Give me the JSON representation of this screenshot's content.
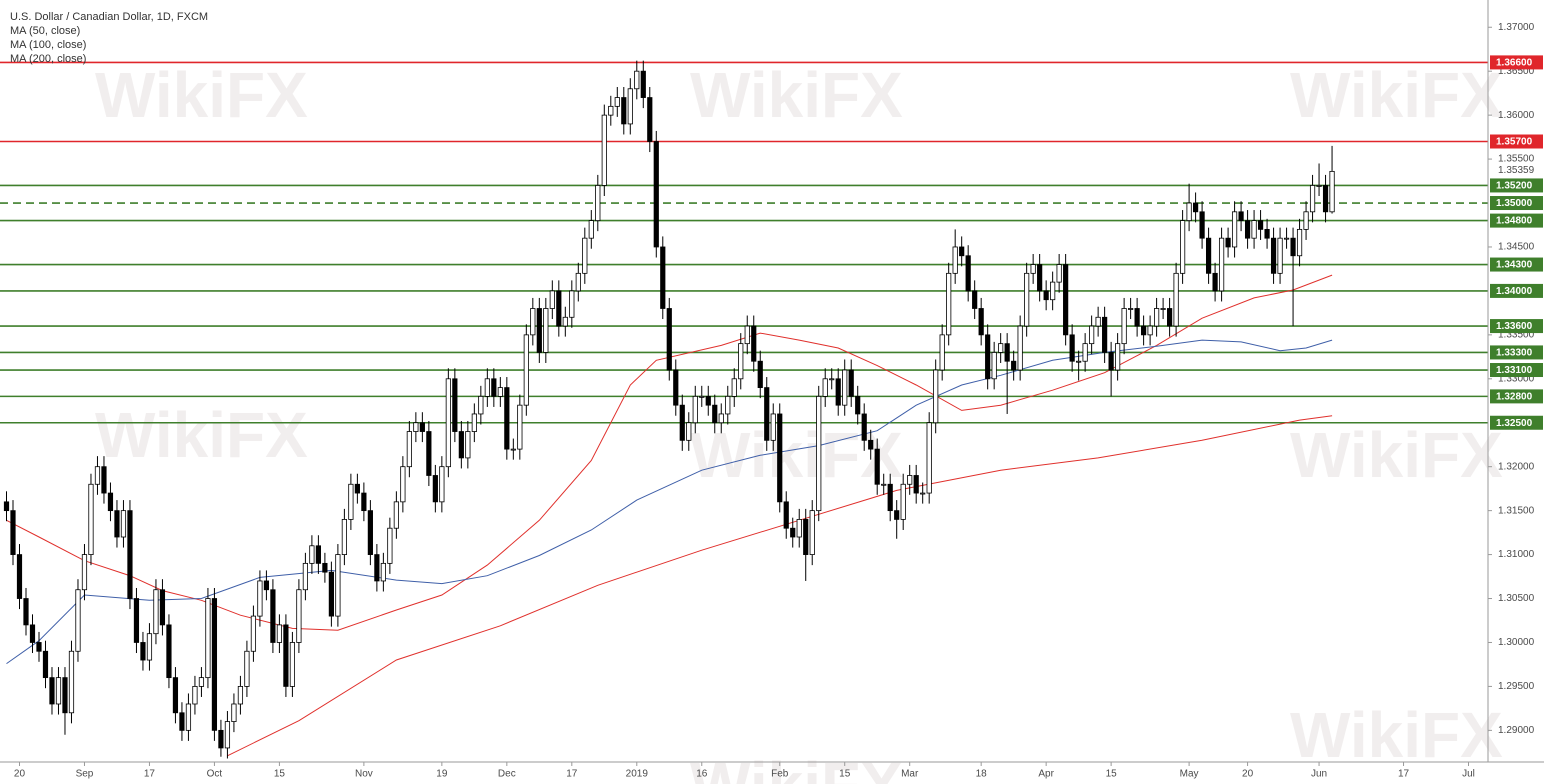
{
  "chart_data": {
    "type": "candlestick",
    "title": "U.S. Dollar / Canadian Dollar, 1D, FXCM",
    "watermark": "WikiFX",
    "open": [
      1.316,
      1.315,
      1.31,
      1.305,
      1.302,
      1.3,
      1.299,
      1.296,
      1.293,
      1.296,
      1.292,
      1.299,
      1.306,
      1.31,
      1.318,
      1.32,
      1.317,
      1.315,
      1.312,
      1.315,
      1.305,
      1.3,
      1.298,
      1.301,
      1.306,
      1.302,
      1.296,
      1.292,
      1.29,
      1.293,
      1.295,
      1.296,
      1.305,
      1.29,
      1.288,
      1.291,
      1.293,
      1.295,
      1.299,
      1.303,
      1.307,
      1.306,
      1.3,
      1.302,
      1.295,
      1.3,
      1.306,
      1.309,
      1.311,
      1.309,
      1.308,
      1.303,
      1.31,
      1.314,
      1.318,
      1.317,
      1.315,
      1.31,
      1.307,
      1.309,
      1.313,
      1.316,
      1.32,
      1.324,
      1.325,
      1.324,
      1.319,
      1.316,
      1.32,
      1.33,
      1.324,
      1.321,
      1.324,
      1.326,
      1.328,
      1.33,
      1.328,
      1.329,
      1.322,
      1.322,
      1.327,
      1.335,
      1.338,
      1.333,
      1.338,
      1.34,
      1.336,
      1.337,
      1.34,
      1.342,
      1.346,
      1.348,
      1.352,
      1.36,
      1.361,
      1.362,
      1.359,
      1.363,
      1.365,
      1.362,
      1.357,
      1.345,
      1.338,
      1.331,
      1.327,
      1.323,
      1.325,
      1.328,
      1.328,
      1.327,
      1.325,
      1.326,
      1.328,
      1.33,
      1.334,
      1.336,
      1.332,
      1.329,
      1.323,
      1.326,
      1.316,
      1.313,
      1.312,
      1.314,
      1.31,
      1.315,
      1.328,
      1.33,
      1.33,
      1.327,
      1.331,
      1.328,
      1.326,
      1.323,
      1.322,
      1.318,
      1.318,
      1.315,
      1.314,
      1.318,
      1.319,
      1.317,
      1.317,
      1.325,
      1.331,
      1.335,
      1.342,
      1.345,
      1.344,
      1.34,
      1.338,
      1.335,
      1.33,
      1.333,
      1.334,
      1.332,
      1.331,
      1.336,
      1.342,
      1.343,
      1.34,
      1.339,
      1.341,
      1.343,
      1.335,
      1.332,
      1.332,
      1.334,
      1.336,
      1.337,
      1.333,
      1.331,
      1.334,
      1.338,
      1.338,
      1.336,
      1.335,
      1.336,
      1.338,
      1.338,
      1.336,
      1.342,
      1.348,
      1.35,
      1.349,
      1.346,
      1.342,
      1.34,
      1.346,
      1.345,
      1.349,
      1.348,
      1.346,
      1.348,
      1.347,
      1.346,
      1.342,
      1.346,
      1.346,
      1.344,
      1.347,
      1.349,
      1.352,
      1.352,
      1.349
    ],
    "high": [
      1.3172,
      1.3162,
      1.3112,
      1.3062,
      1.3032,
      1.3012,
      1.3002,
      1.2972,
      1.2972,
      1.2972,
      1.3002,
      1.3072,
      1.3112,
      1.3192,
      1.3212,
      1.3212,
      1.3182,
      1.3162,
      1.3162,
      1.3162,
      1.3062,
      1.3012,
      1.3022,
      1.3072,
      1.3072,
      1.3032,
      1.2972,
      1.2932,
      1.2942,
      1.2962,
      1.2972,
      1.3062,
      1.3062,
      1.2912,
      1.2922,
      1.2942,
      1.2962,
      1.3002,
      1.3042,
      1.3082,
      1.3082,
      1.3072,
      1.3032,
      1.3032,
      1.3012,
      1.3072,
      1.3102,
      1.3122,
      1.3122,
      1.3102,
      1.3092,
      1.3112,
      1.3152,
      1.3192,
      1.3192,
      1.3182,
      1.3162,
      1.3112,
      1.3102,
      1.3142,
      1.3172,
      1.3212,
      1.3252,
      1.3262,
      1.3262,
      1.3252,
      1.3202,
      1.3212,
      1.3312,
      1.3312,
      1.3252,
      1.3252,
      1.3272,
      1.3292,
      1.3312,
      1.3312,
      1.3302,
      1.3302,
      1.3232,
      1.3282,
      1.3362,
      1.3392,
      1.3392,
      1.3392,
      1.3412,
      1.3412,
      1.3382,
      1.3412,
      1.3432,
      1.3472,
      1.3492,
      1.3532,
      1.3612,
      1.3622,
      1.3632,
      1.3632,
      1.3642,
      1.3662,
      1.3662,
      1.3632,
      1.3582,
      1.3462,
      1.3392,
      1.3322,
      1.3282,
      1.3262,
      1.3292,
      1.3292,
      1.3292,
      1.3282,
      1.3272,
      1.3292,
      1.3312,
      1.3352,
      1.3372,
      1.3372,
      1.3332,
      1.3302,
      1.3272,
      1.3272,
      1.3172,
      1.3142,
      1.3152,
      1.3152,
      1.3162,
      1.3292,
      1.3312,
      1.3312,
      1.3312,
      1.3322,
      1.3322,
      1.3292,
      1.3272,
      1.3242,
      1.3232,
      1.3192,
      1.3192,
      1.3162,
      1.3192,
      1.3202,
      1.3202,
      1.3182,
      1.3262,
      1.3322,
      1.3362,
      1.3432,
      1.347,
      1.3462,
      1.3452,
      1.3412,
      1.3392,
      1.3362,
      1.3342,
      1.3352,
      1.3352,
      1.3332,
      1.3372,
      1.3432,
      1.3442,
      1.3442,
      1.3412,
      1.3422,
      1.3442,
      1.3442,
      1.3362,
      1.3332,
      1.3352,
      1.3372,
      1.3382,
      1.3382,
      1.3342,
      1.3352,
      1.3392,
      1.3392,
      1.3392,
      1.3372,
      1.3372,
      1.3392,
      1.3392,
      1.3392,
      1.3432,
      1.3492,
      1.3522,
      1.3512,
      1.3502,
      1.3472,
      1.3432,
      1.3472,
      1.3472,
      1.3502,
      1.3502,
      1.3492,
      1.3492,
      1.3492,
      1.3482,
      1.3472,
      1.3472,
      1.3472,
      1.3472,
      1.3482,
      1.3502,
      1.3532,
      1.3545,
      1.3532,
      1.3565
    ],
    "low": [
      1.3138,
      1.3088,
      1.3038,
      1.3008,
      1.2988,
      1.2978,
      1.2948,
      1.2918,
      1.2918,
      1.2895,
      1.2908,
      1.2978,
      1.3048,
      1.3088,
      1.3168,
      1.3158,
      1.3138,
      1.3108,
      1.3108,
      1.3038,
      1.2988,
      1.2968,
      1.2968,
      1.2998,
      1.3008,
      1.2948,
      1.2908,
      1.2888,
      1.2888,
      1.2918,
      1.2938,
      1.2948,
      1.2888,
      1.287,
      1.2868,
      1.2898,
      1.2918,
      1.2938,
      1.2978,
      1.3018,
      1.3048,
      1.2988,
      1.2988,
      1.2938,
      1.2938,
      1.2988,
      1.3048,
      1.3078,
      1.3078,
      1.3068,
      1.3018,
      1.3018,
      1.3088,
      1.3128,
      1.3158,
      1.3138,
      1.3088,
      1.3058,
      1.3058,
      1.3078,
      1.3118,
      1.3148,
      1.3188,
      1.3228,
      1.3228,
      1.3178,
      1.3148,
      1.3148,
      1.3188,
      1.3228,
      1.3198,
      1.3198,
      1.3228,
      1.3248,
      1.3268,
      1.3268,
      1.3268,
      1.3208,
      1.3208,
      1.3208,
      1.3258,
      1.3338,
      1.3318,
      1.3318,
      1.3368,
      1.3348,
      1.3348,
      1.3358,
      1.3388,
      1.3408,
      1.3448,
      1.3468,
      1.3508,
      1.3588,
      1.3598,
      1.3578,
      1.3578,
      1.3618,
      1.3608,
      1.3558,
      1.3438,
      1.3368,
      1.3298,
      1.3258,
      1.3218,
      1.3218,
      1.3238,
      1.3268,
      1.3258,
      1.3238,
      1.3238,
      1.3248,
      1.3268,
      1.3288,
      1.3328,
      1.3308,
      1.3278,
      1.3218,
      1.3218,
      1.3148,
      1.3118,
      1.3108,
      1.3108,
      1.307,
      1.3088,
      1.3138,
      1.3268,
      1.3288,
      1.3258,
      1.3258,
      1.3268,
      1.3248,
      1.3218,
      1.3208,
      1.3168,
      1.3168,
      1.3138,
      1.3118,
      1.3128,
      1.3168,
      1.3158,
      1.3158,
      1.3158,
      1.3238,
      1.3298,
      1.3338,
      1.3408,
      1.3428,
      1.3388,
      1.3368,
      1.3338,
      1.3288,
      1.3288,
      1.3318,
      1.326,
      1.3298,
      1.3298,
      1.3348,
      1.3408,
      1.3388,
      1.3378,
      1.3378,
      1.3398,
      1.3338,
      1.3308,
      1.3298,
      1.3308,
      1.3328,
      1.3348,
      1.3318,
      1.328,
      1.3298,
      1.3328,
      1.3368,
      1.3348,
      1.3338,
      1.3338,
      1.3348,
      1.3368,
      1.3348,
      1.3348,
      1.3408,
      1.3468,
      1.3478,
      1.3448,
      1.3408,
      1.3388,
      1.3388,
      1.3438,
      1.3438,
      1.3468,
      1.3448,
      1.3448,
      1.3458,
      1.3448,
      1.3408,
      1.3408,
      1.3448,
      1.336,
      1.3428,
      1.3458,
      1.3478,
      1.3508,
      1.3478,
      1.3488
    ],
    "close": [
      1.315,
      1.31,
      1.305,
      1.302,
      1.3,
      1.299,
      1.296,
      1.293,
      1.296,
      1.292,
      1.299,
      1.306,
      1.31,
      1.318,
      1.32,
      1.317,
      1.315,
      1.312,
      1.315,
      1.305,
      1.3,
      1.298,
      1.301,
      1.306,
      1.302,
      1.296,
      1.292,
      1.29,
      1.293,
      1.295,
      1.296,
      1.305,
      1.29,
      1.288,
      1.291,
      1.293,
      1.295,
      1.299,
      1.303,
      1.307,
      1.306,
      1.3,
      1.302,
      1.295,
      1.3,
      1.306,
      1.309,
      1.311,
      1.309,
      1.308,
      1.303,
      1.31,
      1.314,
      1.318,
      1.317,
      1.315,
      1.31,
      1.307,
      1.309,
      1.313,
      1.316,
      1.32,
      1.324,
      1.325,
      1.324,
      1.319,
      1.316,
      1.32,
      1.33,
      1.324,
      1.321,
      1.324,
      1.326,
      1.328,
      1.33,
      1.328,
      1.329,
      1.322,
      1.322,
      1.327,
      1.335,
      1.338,
      1.333,
      1.338,
      1.34,
      1.336,
      1.337,
      1.34,
      1.342,
      1.346,
      1.348,
      1.352,
      1.36,
      1.361,
      1.362,
      1.359,
      1.363,
      1.365,
      1.362,
      1.357,
      1.345,
      1.338,
      1.331,
      1.327,
      1.323,
      1.325,
      1.328,
      1.328,
      1.327,
      1.325,
      1.326,
      1.328,
      1.33,
      1.334,
      1.336,
      1.332,
      1.329,
      1.323,
      1.326,
      1.316,
      1.313,
      1.312,
      1.314,
      1.31,
      1.315,
      1.328,
      1.33,
      1.33,
      1.327,
      1.331,
      1.328,
      1.326,
      1.323,
      1.322,
      1.318,
      1.318,
      1.315,
      1.314,
      1.318,
      1.319,
      1.317,
      1.317,
      1.325,
      1.331,
      1.335,
      1.342,
      1.345,
      1.344,
      1.34,
      1.338,
      1.335,
      1.33,
      1.333,
      1.334,
      1.332,
      1.331,
      1.336,
      1.342,
      1.343,
      1.34,
      1.339,
      1.341,
      1.343,
      1.335,
      1.332,
      1.332,
      1.334,
      1.336,
      1.337,
      1.333,
      1.331,
      1.334,
      1.338,
      1.338,
      1.336,
      1.335,
      1.336,
      1.338,
      1.338,
      1.336,
      1.342,
      1.348,
      1.35,
      1.349,
      1.346,
      1.342,
      1.34,
      1.346,
      1.345,
      1.349,
      1.348,
      1.346,
      1.348,
      1.347,
      1.346,
      1.342,
      1.346,
      1.346,
      1.344,
      1.347,
      1.349,
      1.352,
      1.352,
      1.349,
      1.3536
    ],
    "up_color": "#ffffff",
    "down_color": "#000000",
    "series": [
      {
        "name": "MA (50, close)",
        "color": "#e0302c",
        "x": [
          0,
          5,
          12,
          19,
          24,
          30,
          36,
          44,
          51,
          60,
          67,
          74,
          82,
          90,
          96,
          100,
          110,
          116,
          122,
          128,
          134,
          140,
          147,
          153,
          161,
          169,
          177,
          184,
          192,
          198,
          204
        ],
        "values": [
          1.3139,
          1.312,
          1.3093,
          1.3076,
          1.3059,
          1.3048,
          1.3031,
          1.3016,
          1.3014,
          1.3037,
          1.3054,
          1.3088,
          1.3139,
          1.3207,
          1.3293,
          1.3321,
          1.3338,
          1.3352,
          1.3344,
          1.3335,
          1.3315,
          1.3293,
          1.3264,
          1.327,
          1.3287,
          1.3307,
          1.3338,
          1.3369,
          1.3392,
          1.3401,
          1.3418
        ]
      },
      {
        "name": "MA (100, close)",
        "color": "#3f5fa8",
        "x": [
          0,
          5,
          12,
          22,
          30,
          39,
          50,
          60,
          67,
          74,
          82,
          90,
          97,
          107,
          116,
          125,
          134,
          140,
          147,
          153,
          161,
          169,
          177,
          184,
          190,
          196,
          200,
          204
        ],
        "values": [
          1.2976,
          1.3002,
          1.3054,
          1.3048,
          1.305,
          1.3074,
          1.3082,
          1.3071,
          1.3067,
          1.3076,
          1.3099,
          1.3128,
          1.3162,
          1.3196,
          1.3213,
          1.3224,
          1.3241,
          1.327,
          1.3293,
          1.3304,
          1.3321,
          1.333,
          1.3337,
          1.3344,
          1.3342,
          1.3332,
          1.3335,
          1.3344
        ]
      },
      {
        "name": "MA (200, close)",
        "color": "#e0302c",
        "x": [
          34,
          45,
          60,
          76,
          91,
          107,
          122,
          137,
          153,
          168,
          184,
          199,
          204
        ],
        "values": [
          1.2871,
          1.2911,
          1.298,
          1.3019,
          1.3065,
          1.3105,
          1.3139,
          1.3173,
          1.3196,
          1.321,
          1.323,
          1.3253,
          1.3258
        ]
      }
    ],
    "levels": [
      {
        "value": 1.366,
        "label": "1.36600",
        "color": "#e0262b",
        "style": "solid"
      },
      {
        "value": 1.357,
        "label": "1.35700",
        "color": "#e0262b",
        "style": "solid"
      },
      {
        "value": 1.352,
        "label": "1.35200",
        "color": "#3f7f2c",
        "style": "solid"
      },
      {
        "value": 1.35,
        "label": "1.35000",
        "color": "#3f7f2c",
        "style": "dashed"
      },
      {
        "value": 1.348,
        "label": "1.34800",
        "color": "#3f7f2c",
        "style": "solid"
      },
      {
        "value": 1.343,
        "label": "1.34300",
        "color": "#3f7f2c",
        "style": "solid"
      },
      {
        "value": 1.34,
        "label": "1.34000",
        "color": "#3f7f2c",
        "style": "solid"
      },
      {
        "value": 1.336,
        "label": "1.33600",
        "color": "#3f7f2c",
        "style": "solid"
      },
      {
        "value": 1.333,
        "label": "1.33300",
        "color": "#3f7f2c",
        "style": "solid"
      },
      {
        "value": 1.331,
        "label": "1.33100",
        "color": "#3f7f2c",
        "style": "solid"
      },
      {
        "value": 1.328,
        "label": "1.32800",
        "color": "#3f7f2c",
        "style": "solid"
      },
      {
        "value": 1.325,
        "label": "1.32500",
        "color": "#3f7f2c",
        "style": "solid"
      }
    ],
    "last_price": {
      "value": 1.35359,
      "label": "1.35359"
    },
    "ylim": [
      1.2864,
      1.3731
    ],
    "yticks": [
      {
        "value": 1.29,
        "label": "1.29000"
      },
      {
        "value": 1.295,
        "label": "1.29500"
      },
      {
        "value": 1.3,
        "label": "1.30000"
      },
      {
        "value": 1.305,
        "label": "1.30500"
      },
      {
        "value": 1.31,
        "label": "1.31000"
      },
      {
        "value": 1.315,
        "label": "1.31500"
      },
      {
        "value": 1.32,
        "label": "1.32000"
      },
      {
        "value": 1.33,
        "label": "1.33000"
      },
      {
        "value": 1.335,
        "label": "1.33500"
      },
      {
        "value": 1.345,
        "label": "1.34500"
      },
      {
        "value": 1.355,
        "label": "1.35500"
      },
      {
        "value": 1.36,
        "label": "1.36000"
      },
      {
        "value": 1.365,
        "label": "1.36500"
      },
      {
        "value": 1.37,
        "label": "1.37000"
      }
    ],
    "xlim": [
      -1,
      228
    ],
    "xticks": [
      {
        "value": 2,
        "label": "20"
      },
      {
        "value": 12,
        "label": "Sep"
      },
      {
        "value": 22,
        "label": "17"
      },
      {
        "value": 32,
        "label": "Oct"
      },
      {
        "value": 42,
        "label": "15"
      },
      {
        "value": 55,
        "label": "Nov"
      },
      {
        "value": 67,
        "label": "19"
      },
      {
        "value": 77,
        "label": "Dec"
      },
      {
        "value": 87,
        "label": "17"
      },
      {
        "value": 97,
        "label": "2019"
      },
      {
        "value": 107,
        "label": "16"
      },
      {
        "value": 119,
        "label": "Feb"
      },
      {
        "value": 129,
        "label": "15"
      },
      {
        "value": 139,
        "label": "Mar"
      },
      {
        "value": 150,
        "label": "18"
      },
      {
        "value": 160,
        "label": "Apr"
      },
      {
        "value": 170,
        "label": "15"
      },
      {
        "value": 182,
        "label": "May"
      },
      {
        "value": 191,
        "label": "20"
      },
      {
        "value": 202,
        "label": "Jun"
      },
      {
        "value": 215,
        "label": "17"
      },
      {
        "value": 225,
        "label": "Jul"
      }
    ],
    "grid": false
  }
}
